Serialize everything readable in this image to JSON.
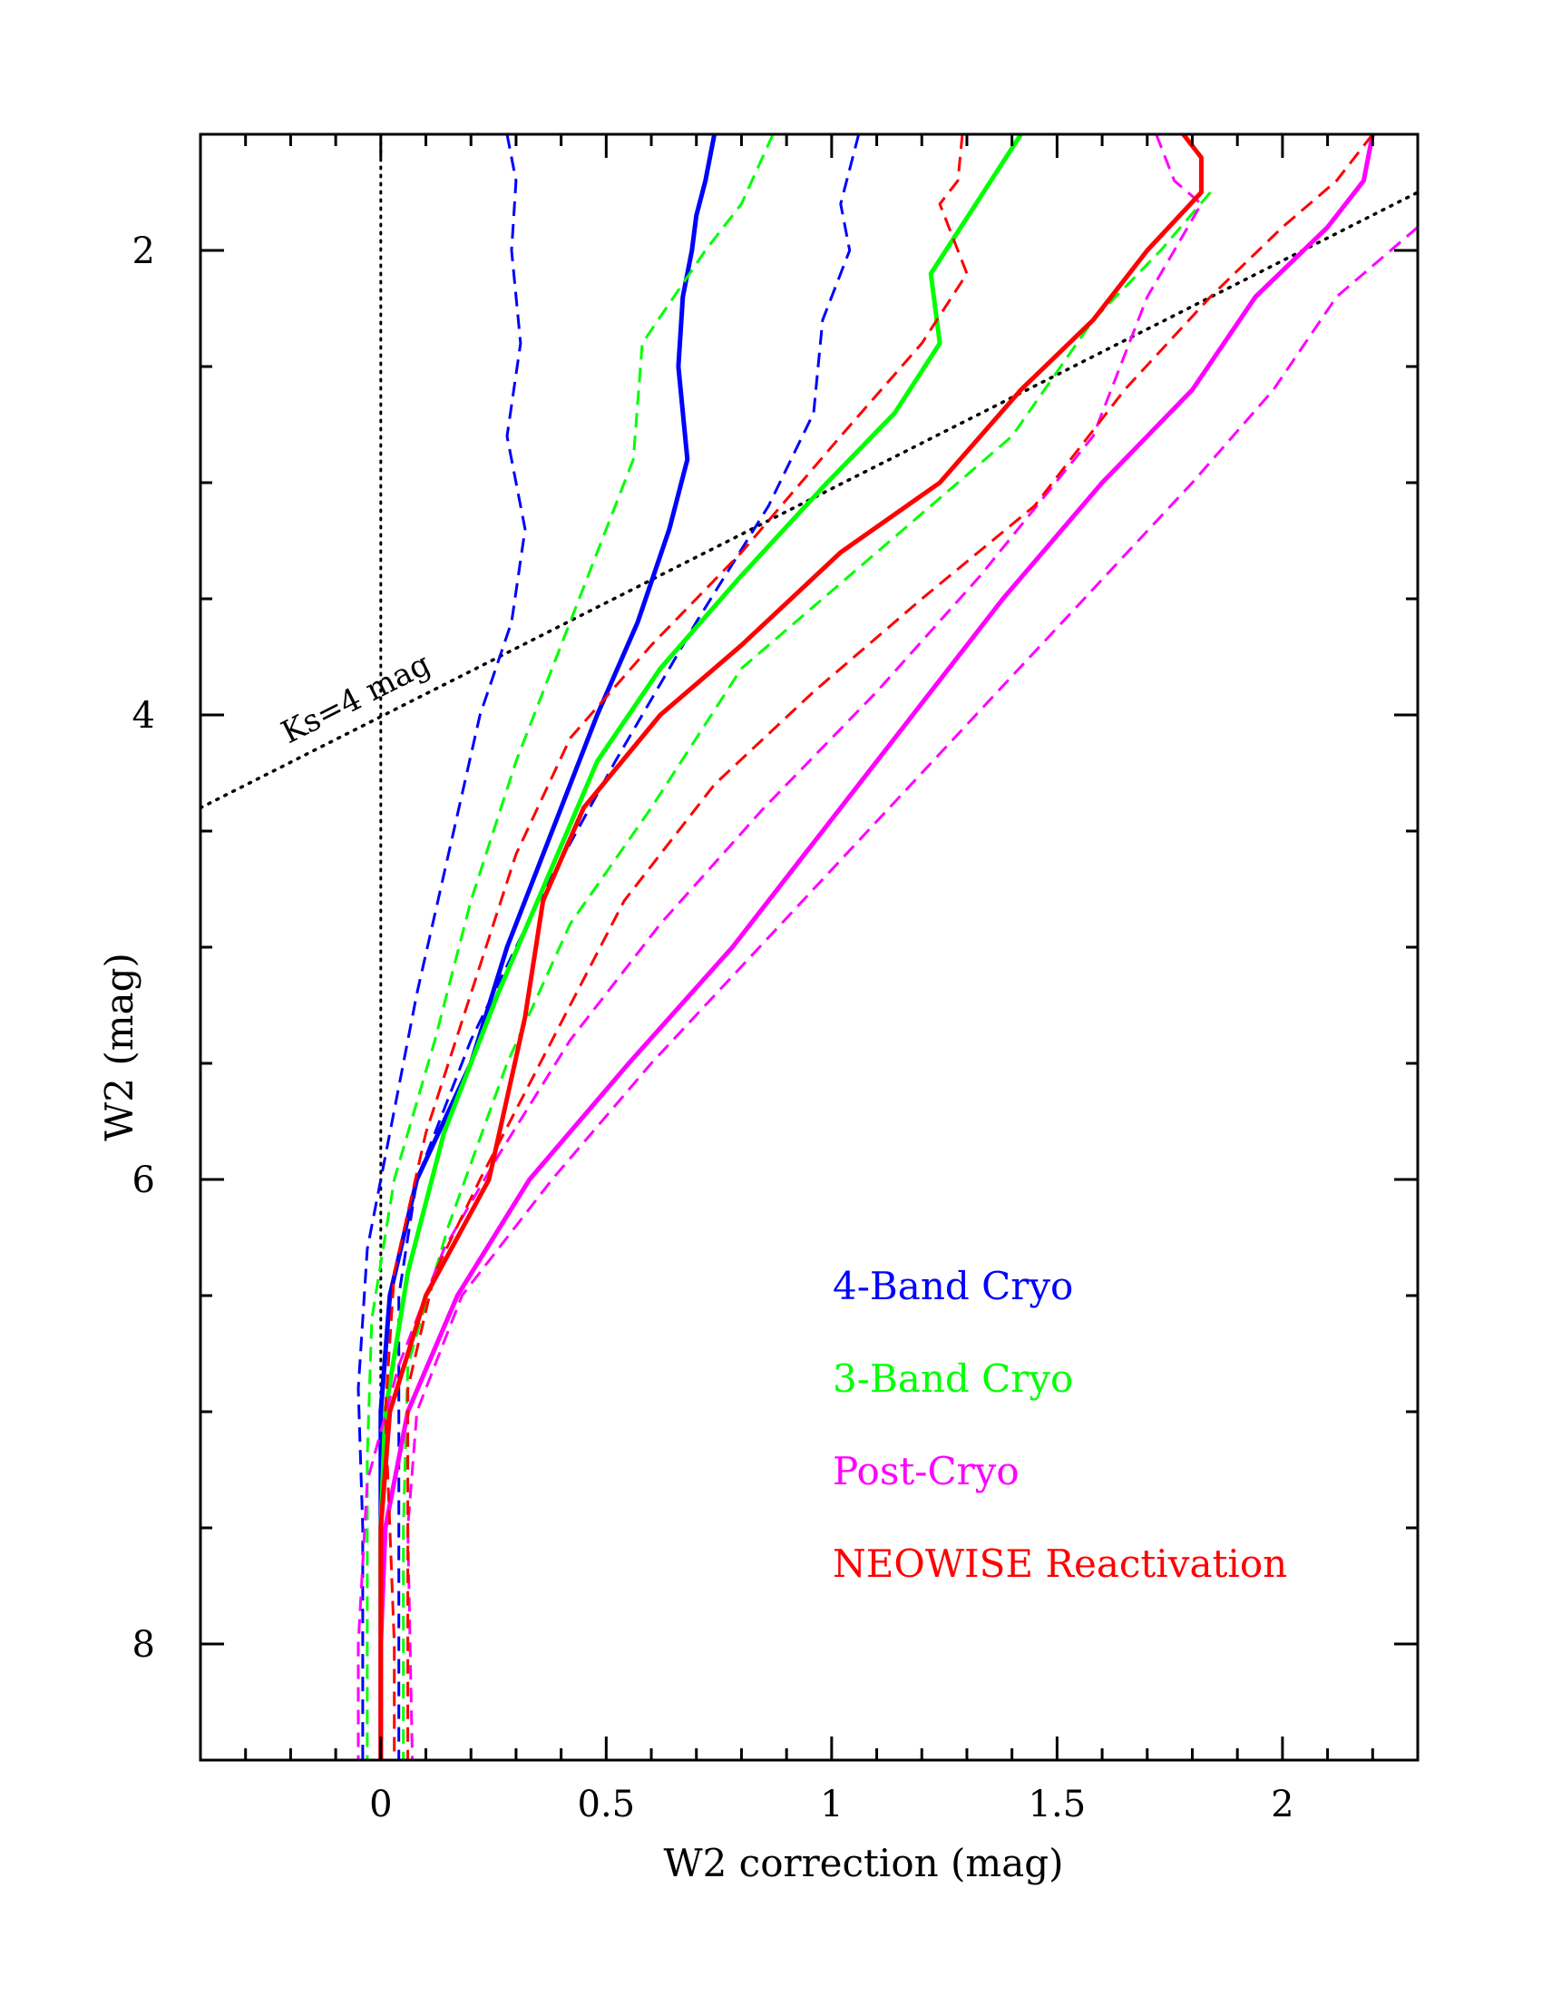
{
  "chart_data": {
    "type": "line",
    "xlabel": "W2 correction (mag)",
    "ylabel": "W2 (mag)",
    "xlim": [
      -0.4,
      2.3
    ],
    "ylim": [
      8.5,
      1.5
    ],
    "y_inverted": true,
    "x_ticks": [
      {
        "value": 0,
        "label": "0"
      },
      {
        "value": 0.5,
        "label": "0.5"
      },
      {
        "value": 1,
        "label": "1"
      },
      {
        "value": 1.5,
        "label": "1.5"
      },
      {
        "value": 2,
        "label": "2"
      }
    ],
    "y_ticks": [
      {
        "value": 2,
        "label": "2"
      },
      {
        "value": 4,
        "label": "4"
      },
      {
        "value": 6,
        "label": "6"
      },
      {
        "value": 8,
        "label": "8"
      }
    ],
    "legend_placement": "lower-right",
    "reference_lines": [
      {
        "kind": "vertical",
        "x": 0,
        "style": "dotted"
      },
      {
        "kind": "line",
        "label": "Ks=4 mag",
        "points": [
          [
            -0.4,
            4.4
          ],
          [
            2.3,
            1.75
          ]
        ],
        "style": "dotted"
      }
    ],
    "series": [
      {
        "name": "4-Band Cryo",
        "color": "#0000ff",
        "role": "median",
        "points": [
          [
            0.74,
            1.5
          ],
          [
            0.72,
            1.7
          ],
          [
            0.7,
            1.85
          ],
          [
            0.69,
            2.0
          ],
          [
            0.67,
            2.2
          ],
          [
            0.66,
            2.5
          ],
          [
            0.68,
            2.9
          ],
          [
            0.64,
            3.2
          ],
          [
            0.57,
            3.6
          ],
          [
            0.48,
            4.0
          ],
          [
            0.38,
            4.5
          ],
          [
            0.28,
            5.0
          ],
          [
            0.2,
            5.5
          ],
          [
            0.08,
            6.0
          ],
          [
            0.02,
            6.5
          ],
          [
            0.0,
            7.0
          ],
          [
            0.0,
            7.5
          ],
          [
            0.0,
            8.0
          ],
          [
            0.0,
            8.5
          ]
        ]
      },
      {
        "name": "",
        "color": "#0000ff",
        "role": "bound-low",
        "points": [
          [
            0.28,
            1.5
          ],
          [
            0.3,
            1.7
          ],
          [
            0.29,
            2.0
          ],
          [
            0.31,
            2.4
          ],
          [
            0.28,
            2.8
          ],
          [
            0.32,
            3.2
          ],
          [
            0.29,
            3.6
          ],
          [
            0.22,
            4.0
          ],
          [
            0.15,
            4.6
          ],
          [
            0.08,
            5.2
          ],
          [
            0.02,
            5.8
          ],
          [
            -0.03,
            6.3
          ],
          [
            -0.05,
            6.9
          ],
          [
            -0.04,
            7.5
          ],
          [
            -0.04,
            8.0
          ],
          [
            -0.04,
            8.5
          ]
        ]
      },
      {
        "name": "",
        "color": "#0000ff",
        "role": "bound-high",
        "points": [
          [
            1.06,
            1.5
          ],
          [
            1.02,
            1.8
          ],
          [
            1.04,
            2.0
          ],
          [
            0.98,
            2.3
          ],
          [
            0.96,
            2.7
          ],
          [
            0.86,
            3.1
          ],
          [
            0.7,
            3.6
          ],
          [
            0.52,
            4.2
          ],
          [
            0.35,
            4.8
          ],
          [
            0.2,
            5.4
          ],
          [
            0.08,
            6.0
          ],
          [
            0.04,
            6.5
          ],
          [
            0.04,
            7.0
          ],
          [
            0.04,
            7.5
          ],
          [
            0.04,
            8.0
          ],
          [
            0.04,
            8.5
          ]
        ]
      },
      {
        "name": "3-Band Cryo",
        "color": "#00ff00",
        "role": "median",
        "points": [
          [
            1.42,
            1.5
          ],
          [
            1.32,
            1.8
          ],
          [
            1.22,
            2.1
          ],
          [
            1.24,
            2.4
          ],
          [
            1.14,
            2.7
          ],
          [
            0.99,
            3.0
          ],
          [
            0.8,
            3.4
          ],
          [
            0.62,
            3.8
          ],
          [
            0.48,
            4.2
          ],
          [
            0.37,
            4.7
          ],
          [
            0.26,
            5.2
          ],
          [
            0.14,
            5.8
          ],
          [
            0.06,
            6.4
          ],
          [
            0.01,
            7.0
          ],
          [
            0.0,
            7.5
          ],
          [
            0.0,
            8.0
          ],
          [
            0.0,
            8.5
          ]
        ]
      },
      {
        "name": "",
        "color": "#00ff00",
        "role": "bound-low",
        "points": [
          [
            0.87,
            1.5
          ],
          [
            0.8,
            1.8
          ],
          [
            0.72,
            2.0
          ],
          [
            0.58,
            2.4
          ],
          [
            0.56,
            2.9
          ],
          [
            0.48,
            3.3
          ],
          [
            0.4,
            3.7
          ],
          [
            0.3,
            4.2
          ],
          [
            0.2,
            4.8
          ],
          [
            0.12,
            5.4
          ],
          [
            0.03,
            6.0
          ],
          [
            -0.02,
            6.6
          ],
          [
            -0.03,
            7.2
          ],
          [
            -0.03,
            8.0
          ],
          [
            -0.03,
            8.5
          ]
        ]
      },
      {
        "name": "",
        "color": "#00ff00",
        "role": "bound-high",
        "points": [
          [
            1.84,
            1.75
          ],
          [
            1.73,
            2.0
          ],
          [
            1.58,
            2.3
          ],
          [
            1.4,
            2.8
          ],
          [
            1.1,
            3.3
          ],
          [
            0.8,
            3.8
          ],
          [
            0.6,
            4.4
          ],
          [
            0.42,
            4.9
          ],
          [
            0.28,
            5.5
          ],
          [
            0.15,
            6.2
          ],
          [
            0.06,
            6.8
          ],
          [
            0.05,
            7.5
          ],
          [
            0.05,
            8.5
          ]
        ]
      },
      {
        "name": "Post-Cryo",
        "color": "#ff00ff",
        "role": "median",
        "points": [
          [
            2.2,
            1.5
          ],
          [
            2.18,
            1.7
          ],
          [
            2.1,
            1.9
          ],
          [
            1.94,
            2.2
          ],
          [
            1.8,
            2.6
          ],
          [
            1.6,
            3.0
          ],
          [
            1.38,
            3.5
          ],
          [
            1.18,
            4.0
          ],
          [
            0.98,
            4.5
          ],
          [
            0.78,
            5.0
          ],
          [
            0.55,
            5.5
          ],
          [
            0.33,
            6.0
          ],
          [
            0.17,
            6.5
          ],
          [
            0.06,
            7.0
          ],
          [
            0.01,
            7.5
          ],
          [
            0.0,
            8.0
          ],
          [
            0.0,
            8.5
          ]
        ]
      },
      {
        "name": "",
        "color": "#ff00ff",
        "role": "bound-low",
        "points": [
          [
            1.72,
            1.5
          ],
          [
            1.76,
            1.7
          ],
          [
            1.82,
            1.8
          ],
          [
            1.7,
            2.2
          ],
          [
            1.58,
            2.8
          ],
          [
            1.33,
            3.4
          ],
          [
            1.1,
            3.9
          ],
          [
            0.85,
            4.4
          ],
          [
            0.62,
            4.9
          ],
          [
            0.42,
            5.4
          ],
          [
            0.26,
            5.9
          ],
          [
            0.14,
            6.3
          ],
          [
            0.04,
            6.8
          ],
          [
            -0.03,
            7.3
          ],
          [
            -0.05,
            8.0
          ],
          [
            -0.05,
            8.5
          ]
        ]
      },
      {
        "name": "",
        "color": "#ff00ff",
        "role": "bound-high",
        "points": [
          [
            2.3,
            1.9
          ],
          [
            2.12,
            2.2
          ],
          [
            1.98,
            2.6
          ],
          [
            1.8,
            3.0
          ],
          [
            1.56,
            3.5
          ],
          [
            1.32,
            4.0
          ],
          [
            1.08,
            4.5
          ],
          [
            0.84,
            5.0
          ],
          [
            0.6,
            5.5
          ],
          [
            0.38,
            6.0
          ],
          [
            0.18,
            6.5
          ],
          [
            0.08,
            7.0
          ],
          [
            0.06,
            7.5
          ],
          [
            0.07,
            8.5
          ]
        ]
      },
      {
        "name": "NEOWISE Reactivation",
        "color": "#ff0000",
        "role": "median",
        "points": [
          [
            1.78,
            1.5
          ],
          [
            1.82,
            1.6
          ],
          [
            1.82,
            1.75
          ],
          [
            1.7,
            2.0
          ],
          [
            1.58,
            2.3
          ],
          [
            1.42,
            2.6
          ],
          [
            1.24,
            3.0
          ],
          [
            1.02,
            3.3
          ],
          [
            0.8,
            3.7
          ],
          [
            0.62,
            4.0
          ],
          [
            0.45,
            4.4
          ],
          [
            0.36,
            4.8
          ],
          [
            0.32,
            5.3
          ],
          [
            0.24,
            6.0
          ],
          [
            0.1,
            6.5
          ],
          [
            0.02,
            7.0
          ],
          [
            0.0,
            7.5
          ],
          [
            0.0,
            8.0
          ],
          [
            0.0,
            8.5
          ]
        ]
      },
      {
        "name": "",
        "color": "#ff0000",
        "role": "bound-low",
        "points": [
          [
            1.29,
            1.5
          ],
          [
            1.28,
            1.7
          ],
          [
            1.24,
            1.8
          ],
          [
            1.3,
            2.1
          ],
          [
            1.2,
            2.4
          ],
          [
            1.02,
            2.8
          ],
          [
            0.8,
            3.3
          ],
          [
            0.6,
            3.7
          ],
          [
            0.42,
            4.1
          ],
          [
            0.3,
            4.6
          ],
          [
            0.2,
            5.2
          ],
          [
            0.1,
            5.8
          ],
          [
            0.03,
            6.4
          ],
          [
            0.01,
            7.0
          ],
          [
            0.02,
            7.5
          ],
          [
            0.03,
            8.0
          ],
          [
            0.03,
            8.5
          ]
        ]
      },
      {
        "name": "",
        "color": "#ff0000",
        "role": "bound-high",
        "points": [
          [
            2.2,
            1.5
          ],
          [
            2.12,
            1.7
          ],
          [
            2.0,
            1.9
          ],
          [
            1.84,
            2.2
          ],
          [
            1.65,
            2.6
          ],
          [
            1.45,
            3.1
          ],
          [
            1.2,
            3.5
          ],
          [
            0.96,
            3.9
          ],
          [
            0.74,
            4.3
          ],
          [
            0.54,
            4.8
          ],
          [
            0.38,
            5.4
          ],
          [
            0.22,
            6.0
          ],
          [
            0.12,
            6.4
          ],
          [
            0.06,
            6.9
          ],
          [
            0.06,
            7.5
          ],
          [
            0.06,
            8.5
          ]
        ]
      }
    ]
  }
}
